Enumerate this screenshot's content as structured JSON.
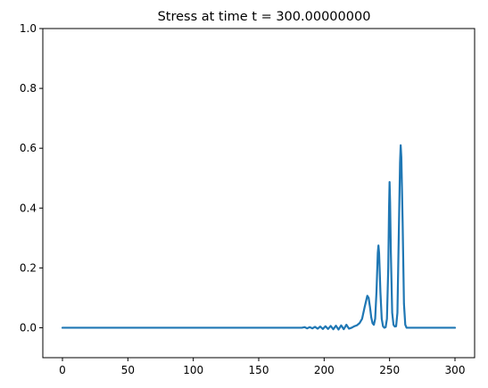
{
  "chart_data": {
    "type": "line",
    "title": "Stress at time t =   300.00000000",
    "xlabel": "",
    "ylabel": "",
    "xlim": [
      -15,
      315
    ],
    "ylim": [
      -0.1,
      1.0
    ],
    "xticks": [
      0,
      50,
      100,
      150,
      200,
      250,
      300
    ],
    "yticks": [
      0.0,
      0.2,
      0.4,
      0.6,
      0.8,
      1.0
    ],
    "xtick_labels": [
      "0",
      "50",
      "100",
      "150",
      "200",
      "250",
      "300"
    ],
    "ytick_labels": [
      "0.0",
      "0.2",
      "0.4",
      "0.6",
      "0.8",
      "1.0"
    ],
    "grid": false,
    "series": [
      {
        "color": "#1f77b4",
        "points": [
          [
            0,
            0.0
          ],
          [
            180,
            0.0
          ],
          [
            183,
            0.0
          ],
          [
            185,
            0.002
          ],
          [
            187,
            -0.002
          ],
          [
            189,
            0.002
          ],
          [
            191,
            -0.002
          ],
          [
            193,
            0.003
          ],
          [
            195,
            -0.003
          ],
          [
            197,
            0.004
          ],
          [
            199,
            -0.004
          ],
          [
            201,
            0.005
          ],
          [
            203,
            -0.004
          ],
          [
            205,
            0.006
          ],
          [
            207,
            -0.005
          ],
          [
            209,
            0.007
          ],
          [
            211,
            -0.006
          ],
          [
            213,
            0.008
          ],
          [
            215,
            -0.005
          ],
          [
            217,
            0.01
          ],
          [
            219,
            -0.003
          ],
          [
            221,
            0.0
          ],
          [
            223,
            0.005
          ],
          [
            225,
            0.008
          ],
          [
            227,
            0.015
          ],
          [
            229,
            0.03
          ],
          [
            231,
            0.07
          ],
          [
            233,
            0.107
          ],
          [
            234,
            0.1
          ],
          [
            235,
            0.07
          ],
          [
            236,
            0.035
          ],
          [
            237,
            0.015
          ],
          [
            238,
            0.01
          ],
          [
            239,
            0.03
          ],
          [
            240,
            0.12
          ],
          [
            241,
            0.25
          ],
          [
            241.5,
            0.275
          ],
          [
            242,
            0.25
          ],
          [
            243,
            0.12
          ],
          [
            244,
            0.03
          ],
          [
            245,
            0.005
          ],
          [
            246,
            0.0
          ],
          [
            247,
            0.002
          ],
          [
            248,
            0.03
          ],
          [
            249,
            0.2
          ],
          [
            249.6,
            0.4
          ],
          [
            250,
            0.487
          ],
          [
            250.4,
            0.42
          ],
          [
            251,
            0.25
          ],
          [
            252,
            0.05
          ],
          [
            253,
            0.01
          ],
          [
            254,
            0.004
          ],
          [
            255,
            0.005
          ],
          [
            256,
            0.05
          ],
          [
            257,
            0.3
          ],
          [
            258,
            0.55
          ],
          [
            258.5,
            0.61
          ],
          [
            259,
            0.57
          ],
          [
            260,
            0.35
          ],
          [
            261,
            0.08
          ],
          [
            262,
            0.01
          ],
          [
            263,
            0.0
          ],
          [
            270,
            0.0
          ],
          [
            300,
            0.0
          ]
        ]
      }
    ]
  }
}
